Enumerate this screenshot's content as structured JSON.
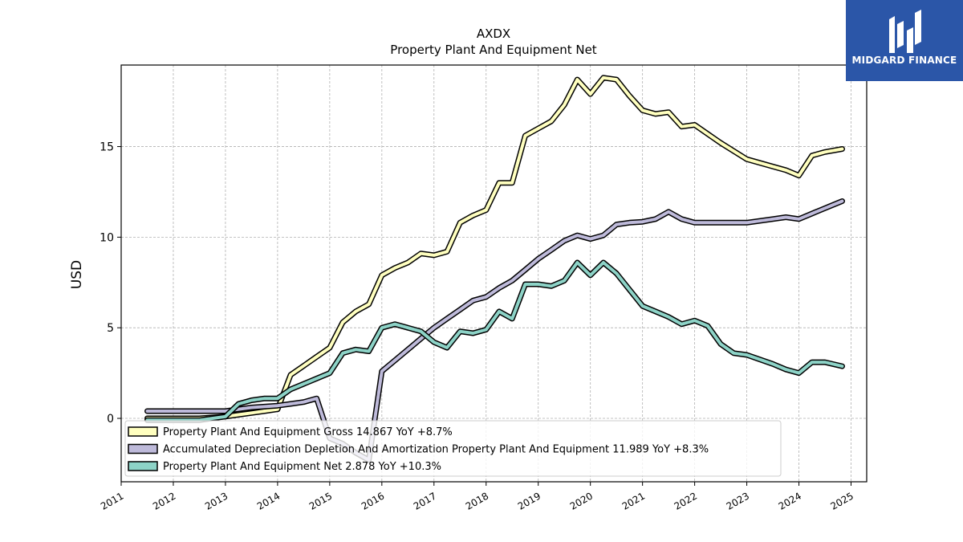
{
  "logo": {
    "text": "MIDGARD FINANCE",
    "background": "#2b56a8"
  },
  "chart_data": {
    "type": "line",
    "title": "AXDX",
    "subtitle": "Property Plant And Equipment Net",
    "ylabel": "USD",
    "xlabel": "",
    "xlim": [
      2011.0,
      2025.3
    ],
    "ylim": [
      -3.5,
      19.5
    ],
    "x_ticks": [
      "2011",
      "2012",
      "2013",
      "2014",
      "2015",
      "2016",
      "2017",
      "2018",
      "2019",
      "2020",
      "2021",
      "2022",
      "2023",
      "2024",
      "2025"
    ],
    "y_ticks": [
      0,
      5,
      10,
      15
    ],
    "grid": true,
    "legend_position": "lower-left",
    "series": [
      {
        "name": "Property Plant And Equipment Gross  14.867 YoY +8.7%",
        "color": "#ffffbf",
        "points": [
          [
            2011.5,
            0.0
          ],
          [
            2012.0,
            0.0
          ],
          [
            2012.5,
            0.0
          ],
          [
            2013.0,
            0.1
          ],
          [
            2013.25,
            0.2
          ],
          [
            2013.5,
            0.3
          ],
          [
            2013.75,
            0.4
          ],
          [
            2014.0,
            0.5
          ],
          [
            2014.25,
            2.4
          ],
          [
            2014.5,
            2.9
          ],
          [
            2014.75,
            3.4
          ],
          [
            2015.0,
            3.9
          ],
          [
            2015.25,
            5.3
          ],
          [
            2015.5,
            5.9
          ],
          [
            2015.75,
            6.3
          ],
          [
            2016.0,
            7.9
          ],
          [
            2016.25,
            8.3
          ],
          [
            2016.5,
            8.6
          ],
          [
            2016.75,
            9.1
          ],
          [
            2017.0,
            9.0
          ],
          [
            2017.25,
            9.2
          ],
          [
            2017.5,
            10.8
          ],
          [
            2017.75,
            11.2
          ],
          [
            2018.0,
            11.5
          ],
          [
            2018.25,
            13.0
          ],
          [
            2018.5,
            13.0
          ],
          [
            2018.75,
            15.6
          ],
          [
            2019.0,
            16.0
          ],
          [
            2019.25,
            16.4
          ],
          [
            2019.5,
            17.3
          ],
          [
            2019.75,
            18.7
          ],
          [
            2020.0,
            17.9
          ],
          [
            2020.25,
            18.8
          ],
          [
            2020.5,
            18.7
          ],
          [
            2020.75,
            17.8
          ],
          [
            2021.0,
            17.0
          ],
          [
            2021.25,
            16.8
          ],
          [
            2021.5,
            16.9
          ],
          [
            2021.75,
            16.1
          ],
          [
            2022.0,
            16.2
          ],
          [
            2022.5,
            15.2
          ],
          [
            2023.0,
            14.3
          ],
          [
            2023.5,
            13.9
          ],
          [
            2023.75,
            13.7
          ],
          [
            2024.0,
            13.4
          ],
          [
            2024.25,
            14.5
          ],
          [
            2024.5,
            14.7
          ],
          [
            2024.83,
            14.867
          ]
        ]
      },
      {
        "name": "Accumulated Depreciation Depletion And Amortization Property Plant And Equipment  11.989 YoY +8.3%",
        "color": "#bebada",
        "points": [
          [
            2011.5,
            0.4
          ],
          [
            2012.0,
            0.4
          ],
          [
            2012.5,
            0.4
          ],
          [
            2013.0,
            0.4
          ],
          [
            2013.25,
            0.5
          ],
          [
            2013.5,
            0.6
          ],
          [
            2013.75,
            0.65
          ],
          [
            2014.0,
            0.7
          ],
          [
            2014.25,
            0.8
          ],
          [
            2014.5,
            0.9
          ],
          [
            2014.75,
            1.1
          ],
          [
            2015.0,
            -1.1
          ],
          [
            2015.25,
            -1.4
          ],
          [
            2015.5,
            -1.9
          ],
          [
            2015.75,
            -2.3
          ],
          [
            2016.0,
            2.6
          ],
          [
            2016.25,
            3.2
          ],
          [
            2016.5,
            3.8
          ],
          [
            2016.75,
            4.4
          ],
          [
            2017.0,
            5.0
          ],
          [
            2017.25,
            5.5
          ],
          [
            2017.5,
            6.0
          ],
          [
            2017.75,
            6.5
          ],
          [
            2018.0,
            6.7
          ],
          [
            2018.25,
            7.2
          ],
          [
            2018.5,
            7.6
          ],
          [
            2018.75,
            8.2
          ],
          [
            2019.0,
            8.8
          ],
          [
            2019.25,
            9.3
          ],
          [
            2019.5,
            9.8
          ],
          [
            2019.75,
            10.1
          ],
          [
            2020.0,
            9.9
          ],
          [
            2020.25,
            10.1
          ],
          [
            2020.5,
            10.7
          ],
          [
            2020.75,
            10.8
          ],
          [
            2021.0,
            10.85
          ],
          [
            2021.25,
            11.0
          ],
          [
            2021.5,
            11.4
          ],
          [
            2021.75,
            11.0
          ],
          [
            2022.0,
            10.8
          ],
          [
            2022.5,
            10.8
          ],
          [
            2023.0,
            10.8
          ],
          [
            2023.5,
            11.0
          ],
          [
            2023.75,
            11.1
          ],
          [
            2024.0,
            11.0
          ],
          [
            2024.25,
            11.3
          ],
          [
            2024.5,
            11.6
          ],
          [
            2024.83,
            11.989
          ]
        ]
      },
      {
        "name": "Property Plant And Equipment Net  2.878 YoY +10.3%",
        "color": "#8dd3c7",
        "points": [
          [
            2011.5,
            -0.1
          ],
          [
            2012.0,
            -0.1
          ],
          [
            2012.5,
            -0.1
          ],
          [
            2013.0,
            0.1
          ],
          [
            2013.25,
            0.8
          ],
          [
            2013.5,
            1.0
          ],
          [
            2013.75,
            1.1
          ],
          [
            2014.0,
            1.1
          ],
          [
            2014.25,
            1.6
          ],
          [
            2014.5,
            1.9
          ],
          [
            2014.75,
            2.2
          ],
          [
            2015.0,
            2.5
          ],
          [
            2015.25,
            3.6
          ],
          [
            2015.5,
            3.8
          ],
          [
            2015.75,
            3.7
          ],
          [
            2016.0,
            5.0
          ],
          [
            2016.25,
            5.2
          ],
          [
            2016.5,
            5.0
          ],
          [
            2016.75,
            4.8
          ],
          [
            2017.0,
            4.2
          ],
          [
            2017.25,
            3.9
          ],
          [
            2017.5,
            4.8
          ],
          [
            2017.75,
            4.7
          ],
          [
            2018.0,
            4.9
          ],
          [
            2018.25,
            5.9
          ],
          [
            2018.5,
            5.5
          ],
          [
            2018.75,
            7.4
          ],
          [
            2019.0,
            7.4
          ],
          [
            2019.25,
            7.3
          ],
          [
            2019.5,
            7.6
          ],
          [
            2019.75,
            8.6
          ],
          [
            2020.0,
            7.9
          ],
          [
            2020.25,
            8.6
          ],
          [
            2020.5,
            8.0
          ],
          [
            2020.75,
            7.1
          ],
          [
            2021.0,
            6.2
          ],
          [
            2021.25,
            5.9
          ],
          [
            2021.5,
            5.6
          ],
          [
            2021.75,
            5.2
          ],
          [
            2022.0,
            5.4
          ],
          [
            2022.25,
            5.1
          ],
          [
            2022.5,
            4.1
          ],
          [
            2022.75,
            3.6
          ],
          [
            2023.0,
            3.5
          ],
          [
            2023.5,
            3.0
          ],
          [
            2023.75,
            2.7
          ],
          [
            2024.0,
            2.5
          ],
          [
            2024.25,
            3.1
          ],
          [
            2024.5,
            3.1
          ],
          [
            2024.83,
            2.878
          ]
        ]
      }
    ]
  }
}
